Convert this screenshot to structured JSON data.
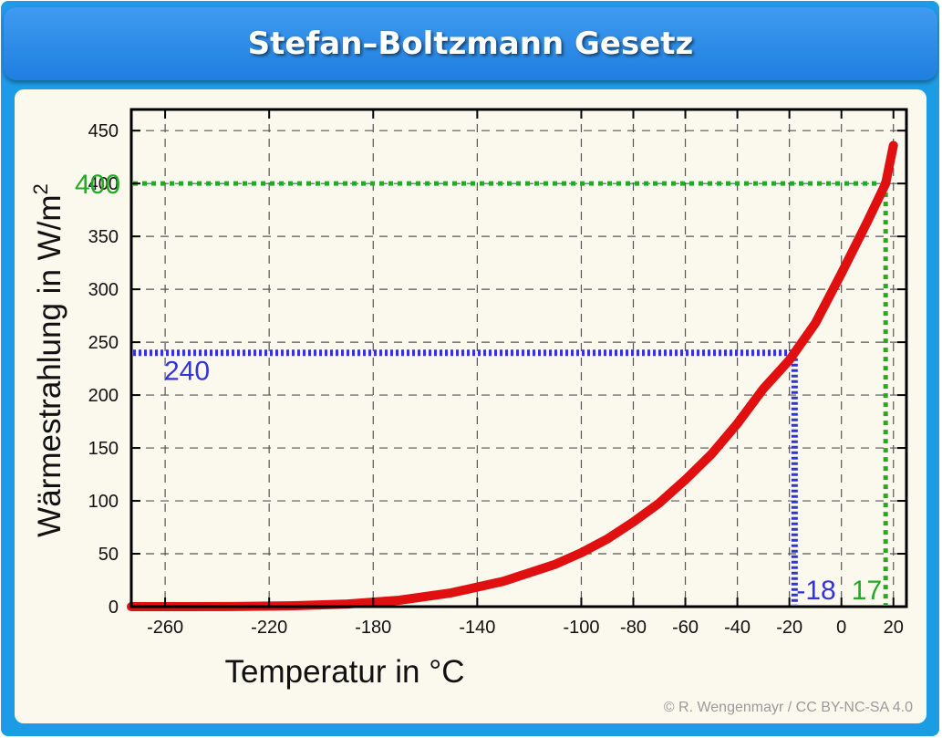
{
  "header": {
    "title": "Stefan–Boltzmann Gesetz"
  },
  "credit": "© R. Wengenmayr / CC BY-NC-SA 4.0",
  "colors": {
    "curve": "#e01010",
    "blue_marker": "#3333dd",
    "green_marker": "#22aa22",
    "title_bar": "#2a8be8",
    "frame": "#1d9ce6",
    "plot_background": "#fbf8ee"
  },
  "chart_data": {
    "type": "line",
    "title": "",
    "xlabel": "Temperatur in °C",
    "ylabel_main": "Wärmestrahlung in W/m",
    "ylabel_sup": "2",
    "xlim": [
      -273,
      25
    ],
    "ylim": [
      0,
      470
    ],
    "grid": true,
    "x_ticks": [
      -260,
      -220,
      -180,
      -140,
      -100,
      -80,
      -60,
      -40,
      -20,
      0,
      20
    ],
    "y_ticks": [
      0,
      50,
      100,
      150,
      200,
      250,
      300,
      350,
      400,
      450
    ],
    "series": [
      {
        "color": "#e01010",
        "x": [
          -273,
          -250,
          -230,
          -210,
          -190,
          -170,
          -150,
          -130,
          -110,
          -100,
          -90,
          -80,
          -70,
          -60,
          -50,
          -40,
          -30,
          -20,
          -18,
          -10,
          0,
          10,
          17,
          20
        ],
        "y": [
          0,
          0,
          0.2,
          0.9,
          2.5,
          6,
          13,
          24,
          40,
          51,
          64,
          80,
          98,
          120,
          144,
          173,
          206,
          233,
          240,
          268,
          315,
          364,
          400,
          436
        ]
      }
    ],
    "annotations": [
      {
        "label": "240",
        "x": -18,
        "y": 240,
        "color": "#3333dd",
        "style": "dotted"
      },
      {
        "label": "-18",
        "x": -18,
        "y": 240,
        "color": "#3333dd",
        "style": "dotted"
      },
      {
        "label": "400",
        "x": 17,
        "y": 400,
        "color": "#22aa22",
        "style": "dotted"
      },
      {
        "label": "17",
        "x": 17,
        "y": 400,
        "color": "#22aa22",
        "style": "dotted"
      }
    ]
  }
}
